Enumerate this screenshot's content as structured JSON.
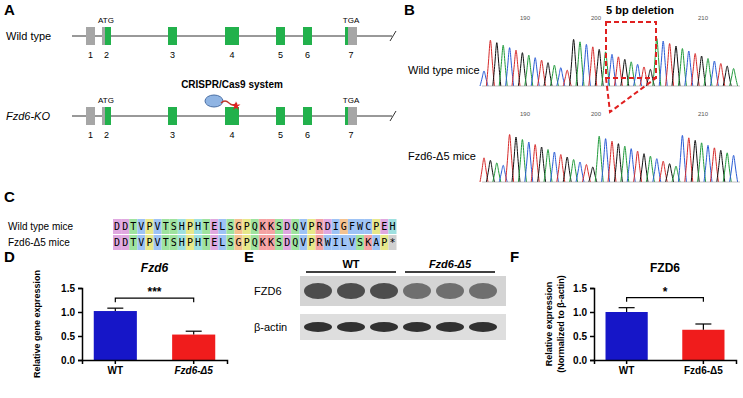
{
  "panel_labels": [
    "A",
    "B",
    "C",
    "D",
    "E",
    "F"
  ],
  "gene_diagram": {
    "rows": [
      "Wild type",
      "Fzd6-KO"
    ],
    "exons": [
      "1",
      "2",
      "3",
      "4",
      "5",
      "6",
      "7"
    ],
    "start_codon": "ATG",
    "stop_codon": "TGA",
    "tool": "CRISPR/Cas9 system"
  },
  "chromatogram": {
    "annotation": "5 bp deletion",
    "rows": [
      "Wild type mice",
      "Fzd6-Δ5 mice"
    ],
    "position_labels": [
      "190",
      "200",
      "210"
    ]
  },
  "alignment": {
    "rows": [
      {
        "label": "Wild type mice",
        "sequence": "DDTVPVTSHPHTELSGPQKKSDQVPRDIGFWCPEH"
      },
      {
        "label": "Fzd6-Δ5 mice",
        "sequence": "DDTVPVTSHPHTELSGPQKKSDQVPRWILVSKAP*"
      }
    ]
  },
  "blot": {
    "groups": [
      "WT",
      "Fzd6-Δ5"
    ],
    "bands": [
      "FZD6",
      "β-actin"
    ]
  },
  "chart_data": [
    {
      "type": "bar",
      "title": "Fzd6",
      "y_label": "Relative gene expression",
      "categories": [
        "WT",
        "Fzd6-Δ5"
      ],
      "values": [
        1.02,
        0.53
      ],
      "errors": [
        0.06,
        0.07
      ],
      "colors": [
        "#1616c8",
        "#f01c1c"
      ],
      "ylim": [
        0,
        1.5
      ],
      "yticks": [
        {
          "value": 0,
          "label": "0.0"
        },
        0.5,
        {
          "value": 1,
          "label": "1.0"
        },
        1.5
      ],
      "annotations": [
        {
          "text": "***"
        }
      ]
    },
    {
      "type": "bar",
      "title": "FZD6",
      "y_label": [
        "Relative expression",
        "(Normalized to β-actin)"
      ],
      "categories": [
        "WT",
        "Fzd6-Δ5"
      ],
      "values": [
        1.0,
        0.63
      ],
      "errors": [
        0.09,
        0.12
      ],
      "colors": [
        "#1616c8",
        "#f01c1c"
      ],
      "ylim": [
        0,
        1.5
      ],
      "yticks": [
        {
          "value": 0,
          "label": "0.0"
        },
        0.5,
        {
          "value": 1,
          "label": "1.0"
        },
        1.5
      ],
      "annotations": [
        {
          "text": "*"
        }
      ]
    }
  ]
}
